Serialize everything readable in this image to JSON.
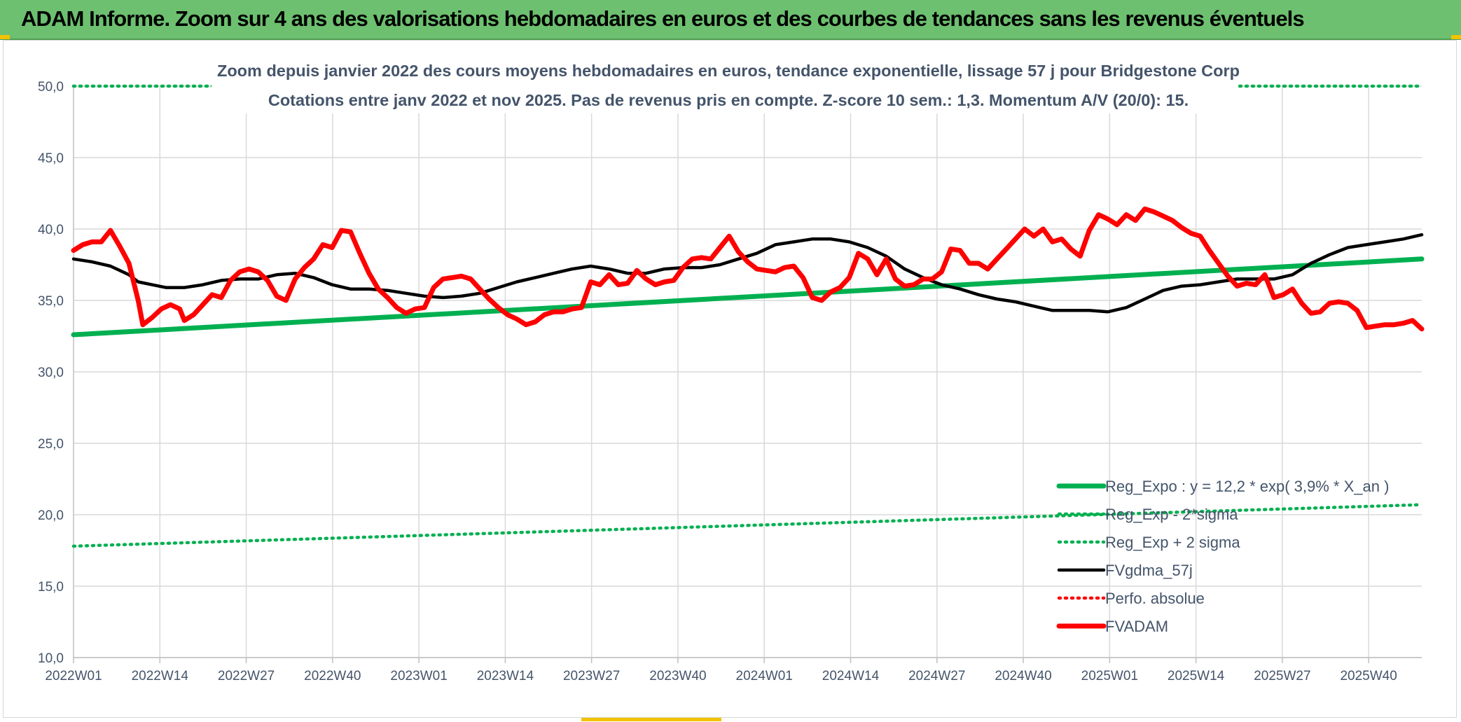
{
  "banner": {
    "title": "ADAM Informe. Zoom sur 4 ans des valorisations hebdomadaires en euros et des courbes de tendances sans les revenus éventuels"
  },
  "colors": {
    "banner_bg": "#6cc06f",
    "green": "#00b050",
    "red": "#ff0000",
    "black": "#000000",
    "grid": "#d9d9d9",
    "text": "#44546a"
  },
  "chart_data": {
    "type": "line",
    "title": "Zoom depuis janvier 2022 des cours moyens hebdomadaires en euros, tendance exponentielle, lissage 57 j pour Bridgestone Corp",
    "subtitle": "Cotations entre janv 2022 et nov 2025. Pas de revenus pris en compte. Z-score 10 sem.: 1,3. Momentum A/V (20/0): 15.",
    "xlabel": "",
    "ylabel": "",
    "ylim": [
      10,
      50
    ],
    "yticks": [
      "10,0",
      "15,0",
      "20,0",
      "25,0",
      "30,0",
      "35,0",
      "40,0",
      "45,0",
      "50,0"
    ],
    "x_tick_labels": [
      "2022W01",
      "2022W14",
      "2022W27",
      "2022W40",
      "2023W01",
      "2023W14",
      "2023W27",
      "2023W40",
      "2024W01",
      "2024W14",
      "2024W27",
      "2024W40",
      "2025W01",
      "2025W14",
      "2025W27",
      "2025W40"
    ],
    "n_weeks": 204,
    "grid": true,
    "legend_position": "bottom-right",
    "series": [
      {
        "name": "Reg_Expo : y = 12,2 * exp( 3,9% *  X_an )",
        "style": "solid-thick",
        "color": "#00b050",
        "points": [
          [
            0,
            32.6
          ],
          [
            203,
            37.9
          ]
        ]
      },
      {
        "name": "Reg_Exp - 2*sigma",
        "style": "dotted",
        "color": "#00b050",
        "points": [
          [
            0,
            17.8
          ],
          [
            203,
            20.7
          ]
        ]
      },
      {
        "name": "Reg_Exp + 2 sigma",
        "style": "dotted",
        "color": "#00b050",
        "points": [
          [
            0,
            50.0
          ],
          [
            203,
            50.0
          ]
        ]
      },
      {
        "name": "FVgdma_57j",
        "style": "solid",
        "color": "#000000",
        "points": [
          [
            0,
            37.9
          ],
          [
            4,
            37.7
          ],
          [
            8,
            37.4
          ],
          [
            12,
            36.8
          ],
          [
            14,
            36.3
          ],
          [
            17,
            36.1
          ],
          [
            20,
            35.9
          ],
          [
            24,
            35.9
          ],
          [
            28,
            36.1
          ],
          [
            32,
            36.4
          ],
          [
            36,
            36.5
          ],
          [
            40,
            36.5
          ],
          [
            44,
            36.8
          ],
          [
            48,
            36.9
          ],
          [
            52,
            36.6
          ],
          [
            56,
            36.1
          ],
          [
            60,
            35.8
          ],
          [
            64,
            35.8
          ],
          [
            68,
            35.7
          ],
          [
            72,
            35.5
          ],
          [
            76,
            35.3
          ],
          [
            80,
            35.2
          ],
          [
            84,
            35.3
          ],
          [
            88,
            35.5
          ],
          [
            92,
            35.9
          ],
          [
            96,
            36.3
          ],
          [
            100,
            36.6
          ],
          [
            104,
            36.9
          ],
          [
            108,
            37.2
          ],
          [
            112,
            37.4
          ],
          [
            116,
            37.2
          ],
          [
            120,
            36.9
          ],
          [
            124,
            36.9
          ],
          [
            128,
            37.2
          ],
          [
            132,
            37.3
          ],
          [
            136,
            37.3
          ],
          [
            140,
            37.5
          ],
          [
            144,
            37.9
          ],
          [
            148,
            38.3
          ],
          [
            152,
            38.9
          ],
          [
            156,
            39.1
          ],
          [
            160,
            39.3
          ],
          [
            164,
            39.3
          ],
          [
            168,
            39.1
          ],
          [
            172,
            38.7
          ],
          [
            176,
            38.1
          ],
          [
            180,
            37.2
          ],
          [
            184,
            36.6
          ],
          [
            188,
            36.1
          ],
          [
            192,
            35.8
          ],
          [
            196,
            35.4
          ],
          [
            200,
            35.1
          ],
          [
            204,
            34.9
          ],
          [
            208,
            34.6
          ],
          [
            212,
            34.3
          ],
          [
            216,
            34.3
          ],
          [
            220,
            34.3
          ],
          [
            224,
            34.2
          ],
          [
            228,
            34.5
          ],
          [
            232,
            35.1
          ],
          [
            236,
            35.7
          ],
          [
            240,
            36.0
          ],
          [
            244,
            36.1
          ],
          [
            248,
            36.3
          ],
          [
            252,
            36.5
          ],
          [
            256,
            36.5
          ],
          [
            260,
            36.5
          ],
          [
            264,
            36.8
          ],
          [
            268,
            37.6
          ],
          [
            272,
            38.2
          ],
          [
            276,
            38.7
          ],
          [
            280,
            38.9
          ],
          [
            284,
            39.1
          ],
          [
            288,
            39.3
          ],
          [
            292,
            39.6
          ]
        ]
      },
      {
        "name": "Perfo. absolue",
        "style": "dotted",
        "color": "#ff0000",
        "points": []
      },
      {
        "name": "FVADAM",
        "style": "solid-thick",
        "color": "#ff0000",
        "points": [
          [
            0,
            38.5
          ],
          [
            2,
            38.9
          ],
          [
            4,
            39.1
          ],
          [
            6,
            39.1
          ],
          [
            8,
            39.9
          ],
          [
            10,
            38.8
          ],
          [
            12,
            37.6
          ],
          [
            14,
            35.0
          ],
          [
            15,
            33.3
          ],
          [
            17,
            33.8
          ],
          [
            19,
            34.4
          ],
          [
            21,
            34.7
          ],
          [
            23,
            34.4
          ],
          [
            24,
            33.6
          ],
          [
            26,
            34.0
          ],
          [
            28,
            34.7
          ],
          [
            30,
            35.4
          ],
          [
            32,
            35.2
          ],
          [
            34,
            36.4
          ],
          [
            36,
            37.0
          ],
          [
            38,
            37.2
          ],
          [
            40,
            37.0
          ],
          [
            42,
            36.4
          ],
          [
            44,
            35.3
          ],
          [
            46,
            35.0
          ],
          [
            48,
            36.5
          ],
          [
            50,
            37.3
          ],
          [
            52,
            37.9
          ],
          [
            54,
            38.9
          ],
          [
            56,
            38.7
          ],
          [
            58,
            39.9
          ],
          [
            60,
            39.8
          ],
          [
            62,
            38.3
          ],
          [
            64,
            36.9
          ],
          [
            66,
            35.8
          ],
          [
            68,
            35.2
          ],
          [
            70,
            34.5
          ],
          [
            72,
            34.1
          ],
          [
            74,
            34.4
          ],
          [
            76,
            34.5
          ],
          [
            78,
            35.9
          ],
          [
            80,
            36.5
          ],
          [
            82,
            36.6
          ],
          [
            84,
            36.7
          ],
          [
            86,
            36.5
          ],
          [
            88,
            35.8
          ],
          [
            90,
            35.1
          ],
          [
            92,
            34.5
          ],
          [
            94,
            34.0
          ],
          [
            96,
            33.7
          ],
          [
            98,
            33.3
          ],
          [
            100,
            33.5
          ],
          [
            102,
            34.0
          ],
          [
            104,
            34.2
          ],
          [
            106,
            34.2
          ],
          [
            108,
            34.4
          ],
          [
            110,
            34.5
          ],
          [
            112,
            36.3
          ],
          [
            114,
            36.1
          ],
          [
            116,
            36.8
          ],
          [
            118,
            36.1
          ],
          [
            120,
            36.2
          ],
          [
            122,
            37.1
          ],
          [
            124,
            36.5
          ],
          [
            126,
            36.1
          ],
          [
            128,
            36.3
          ],
          [
            130,
            36.4
          ],
          [
            132,
            37.3
          ],
          [
            134,
            37.9
          ],
          [
            136,
            38.0
          ],
          [
            138,
            37.9
          ],
          [
            140,
            38.7
          ],
          [
            142,
            39.5
          ],
          [
            144,
            38.4
          ],
          [
            146,
            37.7
          ],
          [
            148,
            37.2
          ],
          [
            150,
            37.1
          ],
          [
            152,
            37.0
          ],
          [
            154,
            37.3
          ],
          [
            156,
            37.4
          ],
          [
            158,
            36.6
          ],
          [
            160,
            35.2
          ],
          [
            162,
            35.0
          ],
          [
            164,
            35.6
          ],
          [
            166,
            35.9
          ],
          [
            168,
            36.6
          ],
          [
            170,
            38.3
          ],
          [
            172,
            37.9
          ],
          [
            174,
            36.8
          ],
          [
            176,
            37.9
          ],
          [
            178,
            36.5
          ],
          [
            180,
            36.0
          ],
          [
            182,
            36.1
          ],
          [
            184,
            36.5
          ],
          [
            186,
            36.5
          ],
          [
            188,
            37.0
          ],
          [
            190,
            38.6
          ],
          [
            192,
            38.5
          ],
          [
            194,
            37.6
          ],
          [
            196,
            37.6
          ],
          [
            198,
            37.2
          ],
          [
            200,
            37.9
          ],
          [
            202,
            38.6
          ],
          [
            204,
            39.3
          ],
          [
            206,
            40.0
          ],
          [
            208,
            39.5
          ],
          [
            210,
            40.0
          ],
          [
            212,
            39.1
          ],
          [
            214,
            39.3
          ],
          [
            216,
            38.6
          ],
          [
            218,
            38.1
          ],
          [
            220,
            39.9
          ],
          [
            222,
            41.0
          ],
          [
            224,
            40.7
          ],
          [
            226,
            40.3
          ],
          [
            228,
            41.0
          ],
          [
            230,
            40.6
          ],
          [
            232,
            41.4
          ],
          [
            234,
            41.2
          ],
          [
            236,
            40.9
          ],
          [
            238,
            40.6
          ],
          [
            240,
            40.1
          ],
          [
            242,
            39.7
          ],
          [
            244,
            39.5
          ],
          [
            246,
            38.5
          ],
          [
            248,
            37.6
          ],
          [
            250,
            36.7
          ],
          [
            252,
            36.0
          ],
          [
            254,
            36.2
          ],
          [
            256,
            36.1
          ],
          [
            258,
            36.8
          ],
          [
            260,
            35.2
          ],
          [
            262,
            35.4
          ],
          [
            264,
            35.8
          ],
          [
            266,
            34.8
          ],
          [
            268,
            34.1
          ],
          [
            270,
            34.2
          ],
          [
            272,
            34.8
          ],
          [
            274,
            34.9
          ],
          [
            276,
            34.8
          ],
          [
            278,
            34.3
          ],
          [
            280,
            33.1
          ],
          [
            282,
            33.2
          ],
          [
            284,
            33.3
          ],
          [
            286,
            33.3
          ],
          [
            288,
            33.4
          ],
          [
            290,
            33.6
          ],
          [
            292,
            33.0
          ]
        ]
      }
    ]
  }
}
